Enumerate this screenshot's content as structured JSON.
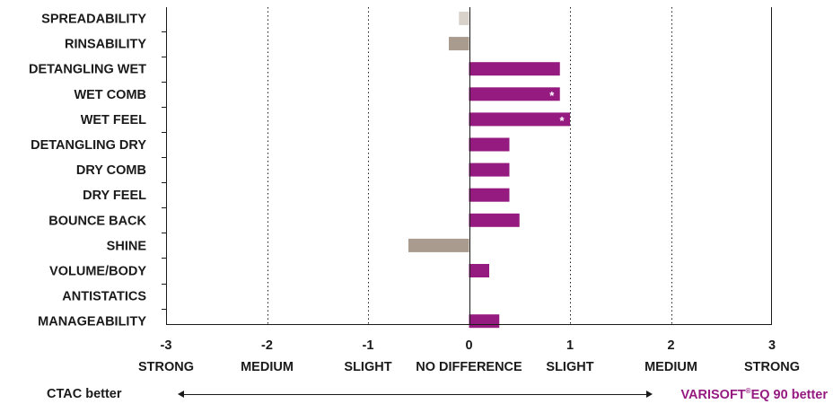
{
  "chart_data": {
    "type": "bar",
    "orientation": "horizontal",
    "categories": [
      "SPREADABILITY",
      "RINSABILITY",
      "DETANGLING WET",
      "WET COMB",
      "WET FEEL",
      "DETANGLING DRY",
      "DRY COMB",
      "DRY FEEL",
      "BOUNCE BACK",
      "SHINE",
      "VOLUME/BODY",
      "ANTISTATICS",
      "MANAGEABILITY"
    ],
    "values": [
      -0.1,
      -0.2,
      0.9,
      0.9,
      1.0,
      0.4,
      0.4,
      0.4,
      0.5,
      -0.6,
      0.2,
      0,
      0.3
    ],
    "significant": [
      false,
      false,
      false,
      true,
      true,
      false,
      false,
      false,
      false,
      false,
      false,
      false,
      false
    ],
    "significance_marker": "*",
    "xlim": [
      -3,
      3
    ],
    "xticks": [
      "-3",
      "-2",
      "-1",
      "0",
      "1",
      "2",
      "3"
    ],
    "xtick_levels": [
      "STRONG",
      "MEDIUM",
      "SLIGHT",
      "NO DIFFERENCE",
      "SLIGHT",
      "MEDIUM",
      "STRONG"
    ],
    "grid": "vertical dotted",
    "colors": {
      "positive": "#951b81",
      "negative": "#a99b8e",
      "negative_light": "#d8d2cb",
      "axis": "#1a1a1a",
      "accent_text": "#951b81"
    }
  },
  "footer": {
    "left_label": "CTAC better",
    "right_label_pre": "VARISOFT",
    "right_label_sup": "®",
    "right_label_post": "EQ 90 better"
  }
}
